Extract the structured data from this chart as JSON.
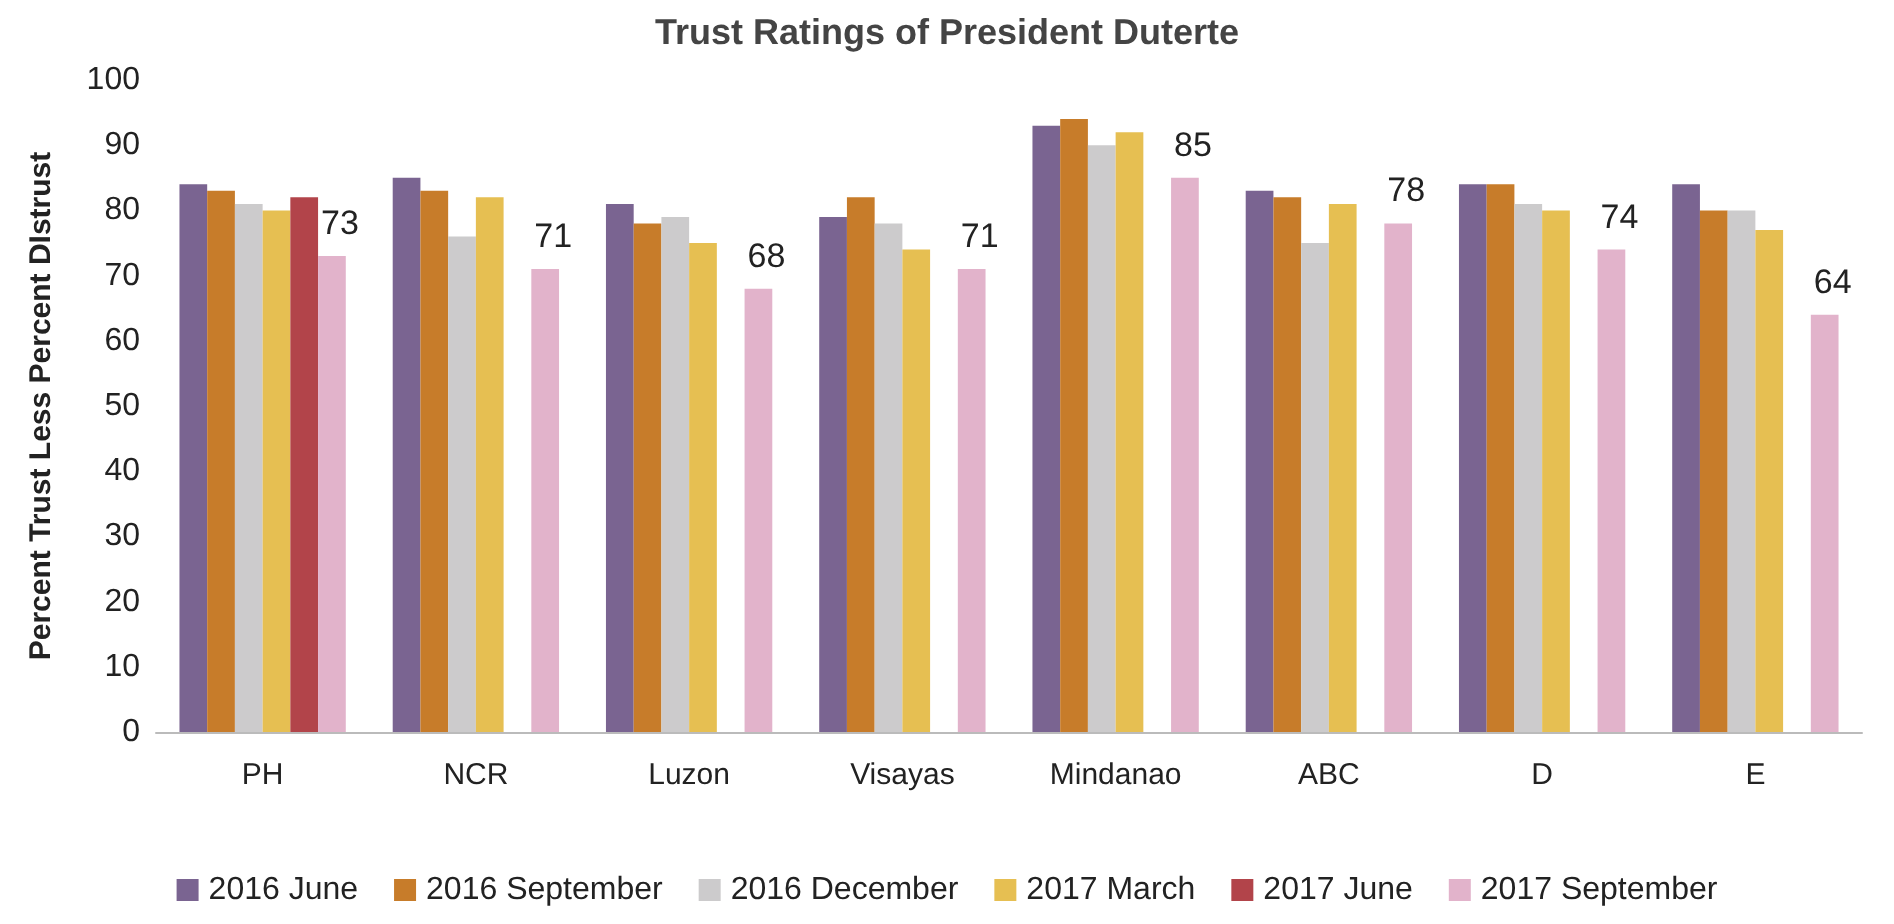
{
  "chart_data": {
    "type": "bar",
    "title": "Trust Ratings of President Duterte",
    "ylabel": "Percent Trust Less Percent DIstrust",
    "categories": [
      "PH",
      "NCR",
      "Luzon",
      "Visayas",
      "Mindanao",
      "ABC",
      "D",
      "E"
    ],
    "series": [
      {
        "name": "2016 June",
        "color": "#7a6491",
        "values": [
          84,
          85,
          81,
          79,
          93,
          83,
          84,
          84
        ]
      },
      {
        "name": "2016 September",
        "color": "#c77c2a",
        "values": [
          83,
          83,
          78,
          82,
          94,
          82,
          84,
          80
        ]
      },
      {
        "name": "2016 December",
        "color": "#cccbcc",
        "values": [
          81,
          76,
          79,
          78,
          90,
          75,
          81,
          80
        ]
      },
      {
        "name": "2017 March",
        "color": "#e6bf52",
        "values": [
          80,
          82,
          75,
          74,
          92,
          81,
          80,
          77
        ]
      },
      {
        "name": "2017 June",
        "color": "#b2444a",
        "values": [
          82,
          null,
          null,
          null,
          null,
          null,
          null,
          null
        ]
      },
      {
        "name": "2017 September",
        "color": "#e2b3cb",
        "values": [
          73,
          71,
          68,
          71,
          85,
          78,
          74,
          64
        ],
        "value_labels": [
          "73",
          "71",
          "68",
          "71",
          "85",
          "78",
          "74",
          "64"
        ]
      }
    ],
    "ylim": [
      0,
      100
    ],
    "yticks": [
      0,
      10,
      20,
      30,
      40,
      50,
      60,
      70,
      80,
      90,
      100
    ],
    "grid": false,
    "legend": "bottom"
  }
}
